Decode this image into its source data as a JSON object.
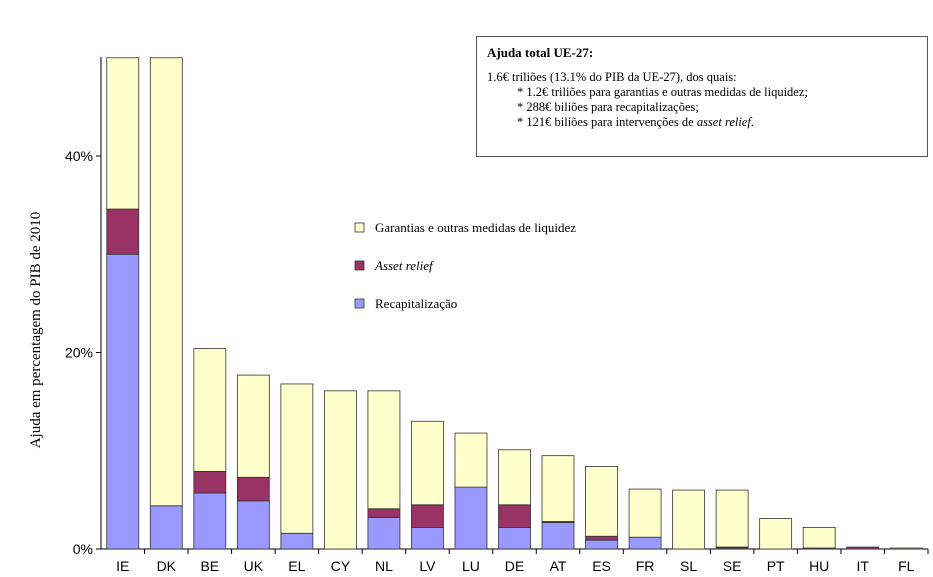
{
  "chart_data": {
    "type": "bar",
    "stacked": true,
    "categories": [
      "IE",
      "DK",
      "BE",
      "UK",
      "EL",
      "CY",
      "NL",
      "LV",
      "LU",
      "DE",
      "AT",
      "ES",
      "FR",
      "SL",
      "SE",
      "PT",
      "HU",
      "IT",
      "FL"
    ],
    "series": [
      {
        "name": "Recapitalização",
        "color": "#9999ff",
        "values": [
          30.0,
          4.4,
          5.7,
          4.9,
          1.6,
          0.0,
          3.2,
          2.2,
          6.3,
          2.2,
          2.7,
          0.9,
          1.2,
          0.0,
          0.1,
          0.0,
          0.0,
          0.0,
          0.0
        ]
      },
      {
        "name": "Asset relief",
        "color": "#993366",
        "values": [
          4.6,
          0.0,
          2.2,
          2.4,
          0.0,
          0.0,
          0.9,
          2.3,
          0.0,
          2.3,
          0.1,
          0.4,
          0.0,
          0.0,
          0.1,
          0.0,
          0.1,
          0.2,
          0.0
        ]
      },
      {
        "name": "Garantias e outras medidas de liquidez",
        "color": "#ffffcc",
        "values": [
          25.4,
          55.6,
          12.5,
          10.4,
          15.2,
          16.1,
          12.0,
          8.5,
          5.5,
          5.6,
          6.7,
          7.1,
          4.9,
          6.0,
          5.8,
          3.1,
          2.1,
          0.0,
          0.1
        ]
      }
    ],
    "ylabel": "Ajuda em percentagem do PIB de 2010",
    "ylim": [
      0,
      50
    ],
    "yticks": [
      "0%",
      "20%",
      "40%"
    ],
    "ytick_values": [
      0,
      20,
      40
    ],
    "legend_order": [
      2,
      1,
      0
    ],
    "legend_placement": "center"
  },
  "info_box": {
    "title": "Ajuda total UE-27:",
    "line1": "1.6€ triliões (13.1% do PIB da UE-27), dos quais:",
    "items": [
      "* 1.2€ triliões para garantias e outras medidas de liquidez;",
      "* 288€ biliões para recapitalizações;"
    ],
    "item3_prefix": "* 121€ biliões para intervenções de ",
    "item3_italic": "asset relief",
    "item3_suffix": "."
  }
}
